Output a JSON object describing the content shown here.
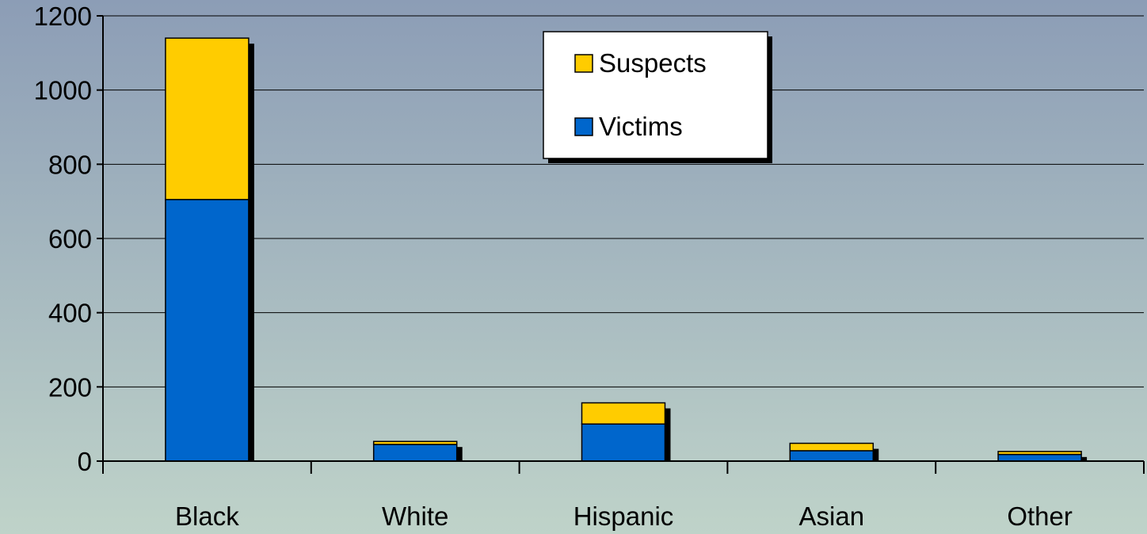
{
  "chart_data": {
    "type": "bar",
    "stacked": true,
    "categories": [
      "Black",
      "White",
      "Hispanic",
      "Asian",
      "Other"
    ],
    "series": [
      {
        "name": "Victims",
        "color": "#0066CC",
        "values": [
          705,
          45,
          100,
          28,
          18
        ]
      },
      {
        "name": "Suspects",
        "color": "#FFCC00",
        "values": [
          435,
          8,
          57,
          20,
          8
        ]
      }
    ],
    "ylim": [
      0,
      1200
    ],
    "yticks": [
      0,
      200,
      400,
      600,
      800,
      1000,
      1200
    ],
    "legend": {
      "position": "top-center",
      "order": [
        "Suspects",
        "Victims"
      ]
    },
    "grid": true,
    "colors": {
      "background_top": "#8C9DB6",
      "background_bottom": "#BFD3C9",
      "shadow": "#000000"
    }
  }
}
